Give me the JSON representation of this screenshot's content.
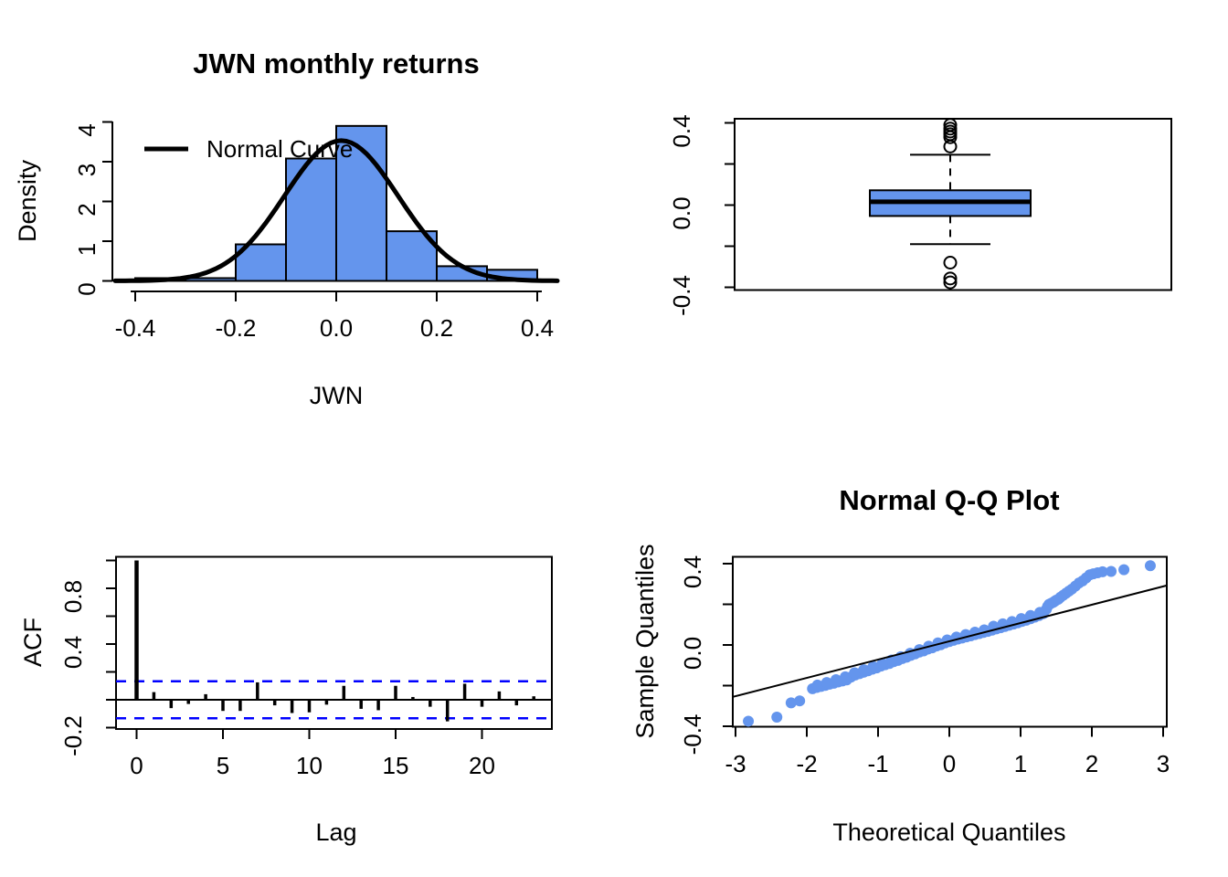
{
  "figure": {
    "background": "#ffffff",
    "accent_blue": "#6495ED",
    "conf_band_blue": "#0000FF",
    "line_black": "#000000"
  },
  "chart_data": [
    {
      "id": "histogram",
      "type": "bar",
      "title": "JWN monthly returns",
      "xlabel": "JWN",
      "ylabel": "Density",
      "bin_start": -0.4,
      "bin_width": 0.1,
      "densities": [
        0.07,
        0.07,
        0.92,
        3.08,
        3.9,
        1.25,
        0.37,
        0.28
      ],
      "curve": {
        "legend": "Normal Curve",
        "mean": 0.01,
        "sd": 0.113
      },
      "xticks": {
        "values": [
          -0.4,
          -0.2,
          0,
          0.2,
          0.4
        ],
        "labels": [
          "-0.4",
          "-0.2",
          "0.0",
          "0.2",
          "0.4"
        ]
      },
      "yticks": {
        "values": [
          0,
          1,
          2,
          3,
          4
        ],
        "labels": [
          "0",
          "1",
          "2",
          "3",
          "4"
        ]
      },
      "xlim": [
        -0.44,
        0.44
      ],
      "ylim": [
        0,
        4.05
      ],
      "bar_fill": "#6495ED",
      "curve_color": "#000000"
    },
    {
      "id": "boxplot",
      "type": "boxplot",
      "stats": {
        "lower_whisker": -0.19,
        "q1": -0.053,
        "median": 0.016,
        "q3": 0.072,
        "upper_whisker": 0.245
      },
      "outliers_high": [
        0.39,
        0.372,
        0.358,
        0.345,
        0.33,
        0.285
      ],
      "outliers_low": [
        -0.28,
        -0.357,
        -0.376
      ],
      "yticks": {
        "values": [
          -0.4,
          -0.2,
          0,
          0.2,
          0.4
        ],
        "labels": [
          "-0.4",
          "",
          "0.0",
          "",
          "0.4"
        ]
      },
      "ylim": [
        -0.41,
        0.42
      ],
      "box_fill": "#6495ED"
    },
    {
      "id": "acf",
      "type": "bar",
      "xlabel": "Lag",
      "ylabel": "ACF",
      "values": [
        1.0,
        0.055,
        -0.06,
        -0.03,
        0.04,
        -0.08,
        -0.08,
        0.125,
        -0.04,
        -0.095,
        -0.09,
        -0.035,
        0.1,
        -0.065,
        -0.075,
        0.1,
        0.02,
        -0.05,
        -0.155,
        0.115,
        -0.05,
        0.06,
        -0.04,
        0.025
      ],
      "conf_level": 0.133,
      "conf_color": "#0000FF",
      "xticks": {
        "values": [
          0,
          5,
          10,
          15,
          20
        ],
        "labels": [
          "0",
          "5",
          "10",
          "15",
          "20"
        ]
      },
      "yticks": {
        "values": [
          -0.2,
          0,
          0.2,
          0.4,
          0.6,
          0.8,
          1
        ],
        "labels": [
          "-0.2",
          "",
          "",
          "0.4",
          "",
          "0.8",
          ""
        ]
      },
      "ylim": [
        -0.21,
        1.02
      ]
    },
    {
      "id": "qq",
      "type": "scatter",
      "title": "Normal Q-Q Plot",
      "xlabel": "Theoretical Quantiles",
      "ylabel": "Sample Quantiles",
      "line": {
        "slope": 0.09,
        "intercept": 0.018
      },
      "xticks": {
        "values": [
          -3,
          -2,
          -1,
          0,
          1,
          2,
          3
        ],
        "labels": [
          "-3",
          "-2",
          "-1",
          "0",
          "1",
          "2",
          "3"
        ]
      },
      "yticks": {
        "values": [
          -0.4,
          -0.2,
          0,
          0.2,
          0.4
        ],
        "labels": [
          "-0.4",
          "",
          "0.0",
          "",
          "0.4"
        ]
      },
      "xlim": [
        -3.04,
        3.05
      ],
      "ylim": [
        -0.43,
        0.43
      ],
      "point_color": "#6495ED",
      "points": [
        [
          -2.82,
          -0.375
        ],
        [
          -2.42,
          -0.355
        ],
        [
          -2.22,
          -0.285
        ],
        [
          -2.1,
          -0.275
        ],
        [
          -1.92,
          -0.215
        ],
        [
          -1.86,
          -0.209
        ],
        [
          -1.8,
          -0.204
        ],
        [
          -1.74,
          -0.199
        ],
        [
          -1.68,
          -0.193
        ],
        [
          -1.62,
          -0.188
        ],
        [
          -1.56,
          -0.182
        ],
        [
          -1.5,
          -0.177
        ],
        [
          -1.44,
          -0.172
        ],
        [
          -1.38,
          -0.158
        ],
        [
          -1.32,
          -0.148
        ],
        [
          -1.26,
          -0.141
        ],
        [
          -1.2,
          -0.134
        ],
        [
          -1.14,
          -0.127
        ],
        [
          -1.08,
          -0.119
        ],
        [
          -1.02,
          -0.113
        ],
        [
          -0.96,
          -0.104
        ],
        [
          -0.9,
          -0.097
        ],
        [
          -0.84,
          -0.091
        ],
        [
          -0.78,
          -0.082
        ],
        [
          -0.72,
          -0.076
        ],
        [
          -0.66,
          -0.067
        ],
        [
          -0.6,
          -0.06
        ],
        [
          -0.54,
          -0.051
        ],
        [
          -0.48,
          -0.044
        ],
        [
          -0.42,
          -0.035
        ],
        [
          -0.36,
          -0.029
        ],
        [
          -0.3,
          -0.02
        ],
        [
          -0.24,
          -0.014
        ],
        [
          -0.18,
          -0.005
        ],
        [
          -0.12,
          0.001
        ],
        [
          -0.06,
          0.01
        ],
        [
          0,
          0.017
        ],
        [
          0.06,
          0.023
        ],
        [
          0.12,
          0.029
        ],
        [
          0.18,
          0.034
        ],
        [
          0.24,
          0.04
        ],
        [
          0.3,
          0.045
        ],
        [
          0.36,
          0.051
        ],
        [
          0.42,
          0.056
        ],
        [
          0.48,
          0.062
        ],
        [
          0.54,
          0.067
        ],
        [
          0.6,
          0.073
        ],
        [
          0.66,
          0.079
        ],
        [
          0.72,
          0.085
        ],
        [
          0.78,
          0.091
        ],
        [
          0.84,
          0.097
        ],
        [
          0.9,
          0.103
        ],
        [
          0.96,
          0.109
        ],
        [
          1.02,
          0.116
        ],
        [
          1.08,
          0.122
        ],
        [
          1.14,
          0.129
        ],
        [
          1.2,
          0.137
        ],
        [
          1.26,
          0.145
        ],
        [
          1.32,
          0.154
        ],
        [
          -1.85,
          -0.197
        ],
        [
          -1.72,
          -0.185
        ],
        [
          -1.59,
          -0.171
        ],
        [
          -1.46,
          -0.157
        ],
        [
          -1.33,
          -0.137
        ],
        [
          -1.2,
          -0.122
        ],
        [
          -1.07,
          -0.106
        ],
        [
          -0.94,
          -0.091
        ],
        [
          -0.81,
          -0.074
        ],
        [
          -0.68,
          -0.058
        ],
        [
          -0.55,
          -0.041
        ],
        [
          -0.42,
          -0.023
        ],
        [
          -0.29,
          -0.006
        ],
        [
          -0.16,
          0.01
        ],
        [
          -0.03,
          0.025
        ],
        [
          0.1,
          0.039
        ],
        [
          0.23,
          0.051
        ],
        [
          0.36,
          0.063
        ],
        [
          0.49,
          0.074
        ],
        [
          0.62,
          0.092
        ],
        [
          0.75,
          0.104
        ],
        [
          0.88,
          0.115
        ],
        [
          1.01,
          0.13
        ],
        [
          1.14,
          0.145
        ],
        [
          1.27,
          0.16
        ],
        [
          1.36,
          0.175
        ],
        [
          1.38,
          0.19
        ],
        [
          1.4,
          0.2
        ],
        [
          1.43,
          0.205
        ],
        [
          1.46,
          0.21
        ],
        [
          1.48,
          0.215
        ],
        [
          1.5,
          0.22
        ],
        [
          1.53,
          0.225
        ],
        [
          1.56,
          0.235
        ],
        [
          1.6,
          0.245
        ],
        [
          1.64,
          0.255
        ],
        [
          1.68,
          0.265
        ],
        [
          1.72,
          0.275
        ],
        [
          1.77,
          0.29
        ],
        [
          1.82,
          0.305
        ],
        [
          1.87,
          0.315
        ],
        [
          1.92,
          0.33
        ],
        [
          1.97,
          0.345
        ],
        [
          2.02,
          0.35
        ],
        [
          2.08,
          0.355
        ],
        [
          2.15,
          0.36
        ],
        [
          2.27,
          0.362
        ],
        [
          2.45,
          0.37
        ],
        [
          2.82,
          0.39
        ]
      ]
    }
  ]
}
